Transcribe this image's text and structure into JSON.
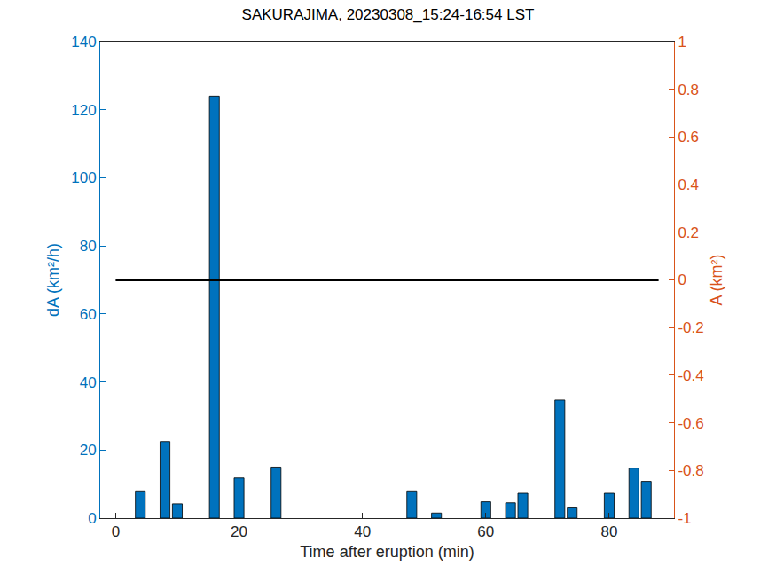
{
  "chart_data": {
    "type": "bar",
    "title": "SAKURAJIMA, 20230308_15:24-16:54 LST",
    "x_label": "Time after eruption (min)",
    "y_label": "dA (km²/h)",
    "y2_label": "A (km²)",
    "xlim": [
      -2.5,
      90.5
    ],
    "xticks": [
      0,
      20,
      40,
      60,
      80
    ],
    "ylim": [
      0,
      140
    ],
    "yticks": [
      0,
      20,
      40,
      60,
      80,
      100,
      120,
      140
    ],
    "y2lim": [
      -1,
      1
    ],
    "y2ticks": [
      -1,
      -0.8,
      -0.6,
      -0.4,
      -0.2,
      0,
      0.2,
      0.4,
      0.6,
      0.8,
      1
    ],
    "grid": false,
    "series": [
      {
        "type": "bar",
        "color": "#0072bd",
        "x": [
          4,
          8,
          10,
          16,
          20,
          26,
          48,
          52,
          60,
          64,
          66,
          72,
          74,
          80,
          84,
          86
        ],
        "values": [
          8,
          22.5,
          4.2,
          124,
          11.8,
          15,
          8,
          1.5,
          4.8,
          4.5,
          7.3,
          34.7,
          3,
          7.3,
          14.7,
          10.8
        ]
      },
      {
        "type": "line",
        "color": "#000000",
        "axis": "y2",
        "x": [
          0,
          88
        ],
        "values": [
          0,
          0
        ]
      }
    ]
  }
}
